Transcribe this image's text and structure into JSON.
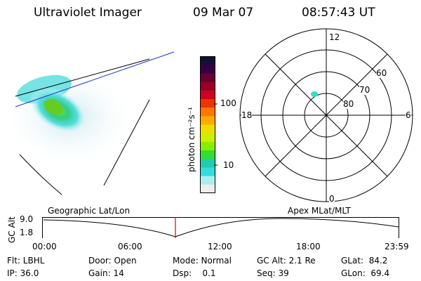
{
  "header": {
    "instrument": "Ultraviolet Imager",
    "date": "09 Mar 07",
    "time": "08:57:43 UT"
  },
  "colorbar": {
    "unit_label": "photon cm⁻²s⁻¹",
    "ticks": [
      "100",
      "10"
    ],
    "colors": [
      "#111133",
      "#330044",
      "#660033",
      "#990022",
      "#cc0022",
      "#ee3300",
      "#ff7700",
      "#ffaa00",
      "#eedd00",
      "#ccee00",
      "#88ee00",
      "#33dd33",
      "#22ccaa",
      "#33dddd",
      "#aaeeee",
      "#eeeeee"
    ]
  },
  "polar_plot": {
    "mlt_labels": [
      "12",
      "18",
      "6",
      "0"
    ],
    "lat_labels": [
      "60",
      "70",
      "80"
    ]
  },
  "timeline": {
    "y_axis_label": "GC Alt",
    "y_ticks": [
      "9.0",
      "1.8"
    ],
    "left_title": "Geographic Lat/Lon",
    "right_title": "Apex MLat/MLT",
    "x_ticks": [
      "00:00",
      "06:00",
      "12:00",
      "18:00",
      "23:59"
    ],
    "marker_color": "#dd0000"
  },
  "status": {
    "flt": "Flt: LBHL",
    "door": "Door: Open",
    "mode": "Mode: Normal",
    "gc_alt": "GC Alt: 2.1 Re",
    "glat": "GLat:  84.2",
    "ip": "IP: 36.0",
    "gain": "Gain: 14",
    "dsp": "Dsp:    0.1",
    "seq": "Seq: 39",
    "glon": "GLon:  69.4"
  }
}
